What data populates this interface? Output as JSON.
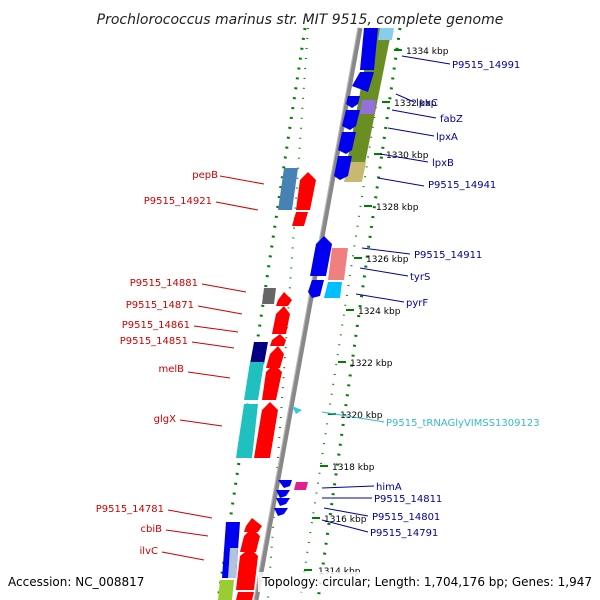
{
  "title": "Prochlorococcus marinus str. MIT 9515, complete genome",
  "footer": {
    "accession": "Accession: NC_008817",
    "summary": "Topology: circular; Length: 1,704,176 bp; Genes: 1,947"
  },
  "colors": {
    "backbone": "#888888",
    "forward_gene": "#ff0000",
    "reverse_gene": "#0000ff",
    "trna": "#33ccdd",
    "ruler_tick": "#008000",
    "left_label": "#cc0000",
    "right_label": "#000099",
    "trna_label": "#33bbcc"
  },
  "ruler": [
    {
      "label": "1334 kbp"
    },
    {
      "label": "1332 kbp"
    },
    {
      "label": "1330 kbp"
    },
    {
      "label": "1328 kbp"
    },
    {
      "label": "1326 kbp"
    },
    {
      "label": "1324 kbp"
    },
    {
      "label": "1322 kbp"
    },
    {
      "label": "1320 kbp"
    },
    {
      "label": "1318 kbp"
    },
    {
      "label": "1316 kbp"
    },
    {
      "label": "1314 kbp"
    }
  ],
  "left_labels": [
    {
      "text": "pepB"
    },
    {
      "text": "P9515_14921"
    },
    {
      "text": "P9515_14881"
    },
    {
      "text": "P9515_14871"
    },
    {
      "text": "P9515_14861"
    },
    {
      "text": "P9515_14851"
    },
    {
      "text": "melB"
    },
    {
      "text": "glgX"
    },
    {
      "text": "P9515_14781"
    },
    {
      "text": "cbiB"
    },
    {
      "text": "ilvC"
    }
  ],
  "right_labels": [
    {
      "text": "P9515_14991"
    },
    {
      "text": "lpxC"
    },
    {
      "text": "fabZ"
    },
    {
      "text": "lpxA"
    },
    {
      "text": "lpxB"
    },
    {
      "text": "P9515_14941"
    },
    {
      "text": "P9515_14911"
    },
    {
      "text": "tyrS"
    },
    {
      "text": "pyrF"
    },
    {
      "text": "P9515_tRNAGlyVIMSS1309123"
    },
    {
      "text": "himA"
    },
    {
      "text": "P9515_14811"
    },
    {
      "text": "P9515_14801"
    },
    {
      "text": "P9515_14791"
    }
  ]
}
